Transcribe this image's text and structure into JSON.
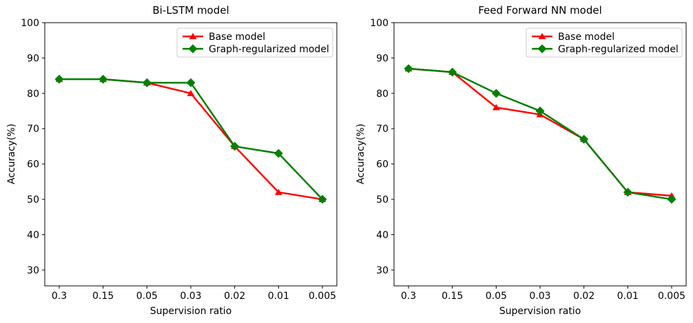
{
  "figure": {
    "background": "#ffffff",
    "spine_color": "#000000",
    "text_color": "#000000",
    "legend_border_color": "#cccccc",
    "legend_background": "#ffffff"
  },
  "chart_data": [
    {
      "type": "line",
      "title": "Bi-LSTM model",
      "xlabel": "Supervision ratio",
      "ylabel": "Accuracy(%)",
      "categories": [
        "0.3",
        "0.15",
        "0.05",
        "0.03",
        "0.02",
        "0.01",
        "0.005"
      ],
      "ylim": [
        25.5,
        100
      ],
      "yticks": [
        30,
        40,
        50,
        60,
        70,
        80,
        90,
        100
      ],
      "grid": false,
      "legend_position": "upper right",
      "series": [
        {
          "name": "Base model",
          "color": "#ff0000",
          "marker": "triangle",
          "values": [
            84,
            84,
            83,
            80,
            65,
            52,
            50
          ]
        },
        {
          "name": "Graph-regularized model",
          "color": "#008000",
          "marker": "diamond",
          "values": [
            84,
            84,
            83,
            83,
            65,
            63,
            50
          ]
        }
      ]
    },
    {
      "type": "line",
      "title": "Feed Forward NN model",
      "xlabel": "Supervision ratio",
      "ylabel": "Accuracy(%)",
      "categories": [
        "0.3",
        "0.15",
        "0.05",
        "0.03",
        "0.02",
        "0.01",
        "0.005"
      ],
      "ylim": [
        25.5,
        100
      ],
      "yticks": [
        30,
        40,
        50,
        60,
        70,
        80,
        90,
        100
      ],
      "grid": false,
      "legend_position": "upper right",
      "series": [
        {
          "name": "Base model",
          "color": "#ff0000",
          "marker": "triangle",
          "values": [
            87,
            86,
            76,
            74,
            67,
            52,
            51
          ]
        },
        {
          "name": "Graph-regularized model",
          "color": "#008000",
          "marker": "diamond",
          "values": [
            87,
            86,
            80,
            75,
            67,
            52,
            50
          ]
        }
      ]
    }
  ]
}
